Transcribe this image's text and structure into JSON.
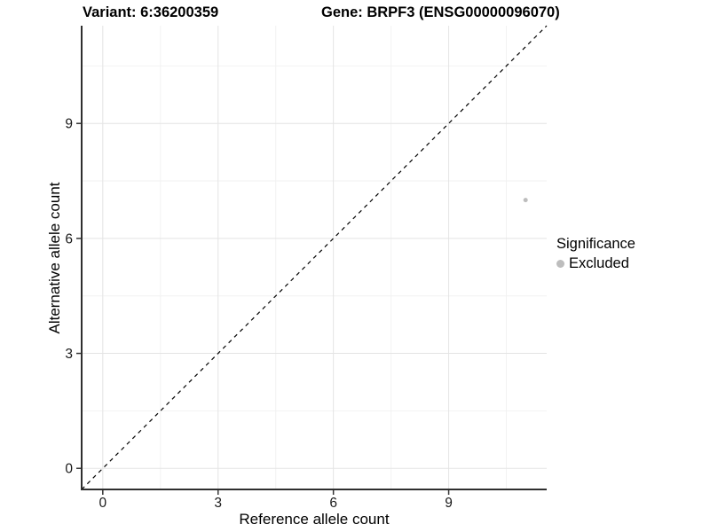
{
  "title_left": "Variant: 6:36200359",
  "title_right": "Gene: BRPF3 (ENSG00000096070)",
  "chart_data": {
    "type": "scatter",
    "title_left": "Variant: 6:36200359",
    "title_right": "Gene: BRPF3 (ENSG00000096070)",
    "xlabel": "Reference allele count",
    "ylabel": "Alternative allele count",
    "xlim": [
      -0.55,
      11.55
    ],
    "ylim": [
      -0.55,
      11.55
    ],
    "xticks": [
      0,
      3,
      6,
      9
    ],
    "yticks": [
      0,
      3,
      6,
      9
    ],
    "minor_gridlines": [
      1.5,
      4.5,
      7.5,
      10.5
    ],
    "grid": "major and minor gridlines, very light grey on white panel",
    "points": [
      {
        "x": 11,
        "y": 7,
        "significance": "Excluded"
      }
    ],
    "identity_line": {
      "style": "dashed",
      "from": [
        -0.55,
        -0.55
      ],
      "to": [
        11.55,
        11.55
      ],
      "color": "#000000"
    },
    "legend": {
      "title": "Significance",
      "position": "right",
      "items": [
        {
          "label": "Excluded",
          "color": "#bdbdbd"
        }
      ]
    },
    "colors": {
      "point": "#bdbdbd",
      "grid_major": "#e4e4e4",
      "grid_minor": "#f2f2f2",
      "axis_line": "#2f2f2f",
      "tick": "#333333",
      "tick_label": "#1a1a1a"
    }
  }
}
